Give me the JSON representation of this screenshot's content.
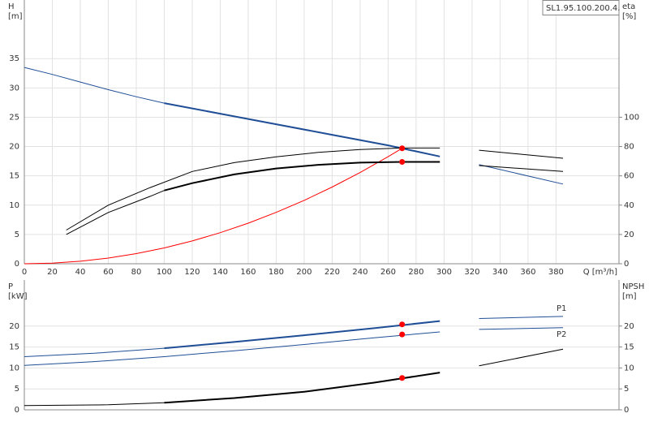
{
  "chart_data": [
    {
      "type": "line",
      "title": "SL1.95.100.200.4.",
      "xlabel": "Q [m³/h]",
      "ylabel": [
        "H",
        "[m]"
      ],
      "y2label": [
        "eta",
        "[%]"
      ],
      "xlim": [
        0,
        425
      ],
      "xticks": [
        0,
        20,
        40,
        60,
        80,
        100,
        120,
        140,
        160,
        180,
        200,
        220,
        240,
        260,
        280,
        300,
        320,
        340,
        360,
        380
      ],
      "ylim": [
        0,
        45
      ],
      "yticks": [
        0,
        5,
        10,
        15,
        20,
        25,
        30,
        35
      ],
      "y2lim": [
        0,
        180
      ],
      "y2ticks": [
        0,
        20,
        40,
        60,
        80,
        100
      ],
      "grid": true,
      "series": [
        {
          "color": "#1f4e96",
          "width": 1,
          "x": [
            0,
            20,
            40,
            60,
            80,
            100
          ],
          "values": [
            33.5,
            32.3,
            31.0,
            29.7,
            28.5,
            27.4
          ]
        },
        {
          "color": "#1f4e96",
          "width": 2,
          "x": [
            100,
            140,
            180,
            220,
            260,
            297
          ],
          "values": [
            27.4,
            25.6,
            23.8,
            22.0,
            20.2,
            18.3
          ]
        },
        {
          "color": "#1f4e96",
          "width": 1,
          "x": [
            325,
            385
          ],
          "values": [
            16.9,
            13.6
          ]
        },
        {
          "color": "#ff0000",
          "width": 1,
          "x": [
            0,
            20,
            40,
            60,
            80,
            100,
            120,
            140,
            160,
            180,
            200,
            220,
            240,
            260,
            270
          ],
          "values": [
            0,
            0.11,
            0.43,
            0.97,
            1.73,
            2.7,
            3.89,
            5.3,
            6.92,
            8.76,
            10.81,
            13.08,
            15.57,
            18.27,
            19.7
          ]
        },
        {
          "color": "#000000",
          "width": 1,
          "axis": "y2",
          "x": [
            30,
            60,
            90,
            120,
            150,
            180,
            210,
            240,
            270,
            297
          ],
          "values": [
            23,
            40,
            52,
            63,
            69,
            73,
            76,
            78,
            79,
            79
          ]
        },
        {
          "color": "#000000",
          "width": 1,
          "axis": "y2",
          "x": [
            30,
            60,
            90,
            100
          ],
          "values": [
            20,
            35,
            46,
            50
          ]
        },
        {
          "color": "#000000",
          "width": 2,
          "axis": "y2",
          "x": [
            100,
            120,
            150,
            180,
            210,
            240,
            270,
            297
          ],
          "values": [
            50,
            55,
            61,
            65,
            67.5,
            69,
            69.5,
            69.5
          ]
        },
        {
          "color": "#000000",
          "width": 1,
          "axis": "y2",
          "x": [
            325,
            385
          ],
          "values": [
            77.5,
            72
          ]
        },
        {
          "color": "#000000",
          "width": 1,
          "axis": "y2",
          "x": [
            325,
            385
          ],
          "values": [
            67,
            63
          ]
        },
        {
          "color": "#ff0000",
          "marker": "dot",
          "x": [
            270
          ],
          "values": [
            19.7
          ]
        },
        {
          "color": "#ff0000",
          "marker": "dot",
          "axis": "y2",
          "x": [
            270
          ],
          "values": [
            69.5
          ]
        }
      ]
    },
    {
      "type": "line",
      "ylabel": [
        "P",
        "[kW]"
      ],
      "y2label": [
        "NPSH",
        "[m]"
      ],
      "xlim": [
        0,
        425
      ],
      "ylim": [
        0,
        31
      ],
      "yticks": [
        0,
        5,
        10,
        15,
        20
      ],
      "y2lim": [
        0,
        31
      ],
      "y2ticks": [
        0,
        5,
        10,
        15,
        20
      ],
      "grid": true,
      "series": [
        {
          "color": "#1f4e96",
          "width": 1,
          "x": [
            0,
            50,
            100
          ],
          "values": [
            12.7,
            13.5,
            14.7
          ]
        },
        {
          "color": "#1f4e96",
          "width": 2,
          "x": [
            100,
            150,
            200,
            250,
            297
          ],
          "values": [
            14.7,
            16.2,
            17.8,
            19.5,
            21.2
          ]
        },
        {
          "name": "P1",
          "color": "#1f4e96",
          "width": 1,
          "x": [
            325,
            385
          ],
          "values": [
            21.8,
            22.3
          ]
        },
        {
          "color": "#1f4e96",
          "width": 1,
          "x": [
            0,
            50,
            100,
            150,
            200,
            250,
            297
          ],
          "values": [
            10.6,
            11.5,
            12.7,
            14.1,
            15.6,
            17.2,
            18.6
          ]
        },
        {
          "name": "P2",
          "color": "#1f4e96",
          "width": 1,
          "x": [
            325,
            385
          ],
          "values": [
            19.2,
            19.6
          ]
        },
        {
          "color": "#000000",
          "width": 1,
          "axis": "y2",
          "x": [
            0,
            60,
            100
          ],
          "values": [
            1.0,
            1.2,
            1.7
          ]
        },
        {
          "color": "#000000",
          "width": 2,
          "axis": "y2",
          "x": [
            100,
            150,
            200,
            250,
            297
          ],
          "values": [
            1.7,
            2.8,
            4.3,
            6.5,
            8.9
          ]
        },
        {
          "color": "#000000",
          "width": 1,
          "axis": "y2",
          "x": [
            325,
            385
          ],
          "values": [
            10.5,
            14.5
          ]
        },
        {
          "color": "#ff0000",
          "marker": "dot",
          "x": [
            270,
            270
          ],
          "values": [
            20.4,
            18.0
          ]
        },
        {
          "color": "#ff0000",
          "marker": "dot",
          "axis": "y2",
          "x": [
            270
          ],
          "values": [
            7.6
          ]
        }
      ]
    }
  ]
}
